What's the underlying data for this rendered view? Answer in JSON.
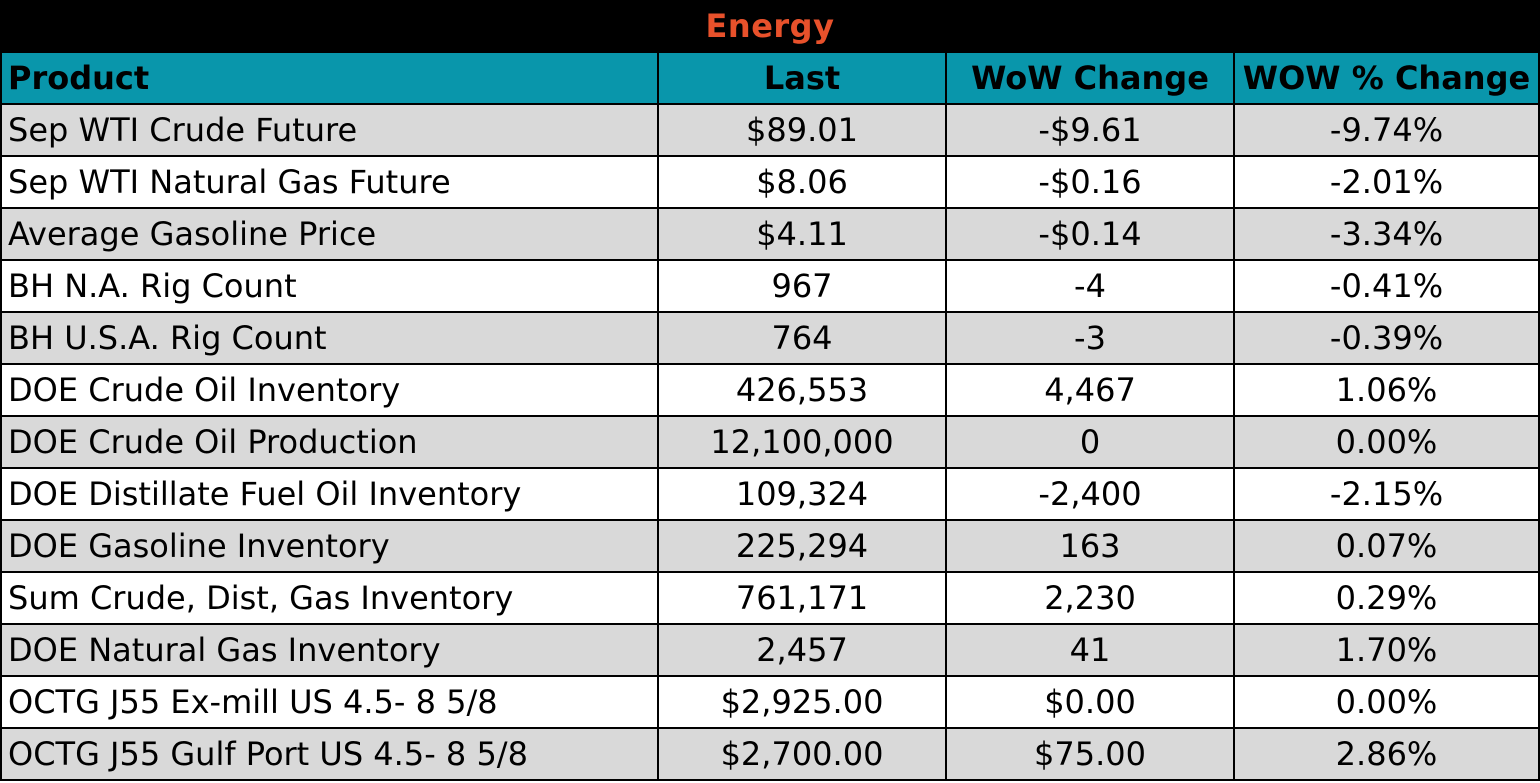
{
  "title": "Energy",
  "colors": {
    "title_bg": "#000000",
    "title_text": "#e8512b",
    "header_bg": "#0996ab",
    "shaded_row": "#d9d9d9",
    "plain_row": "#ffffff"
  },
  "columns": [
    "Product",
    "Last",
    "WoW Change",
    "WOW % Change"
  ],
  "rows": [
    {
      "product": "Sep WTI Crude Future",
      "last": "$89.01",
      "wow_change": "-$9.61",
      "wow_pct": "-9.74%"
    },
    {
      "product": "Sep WTI Natural Gas Future",
      "last": "$8.06",
      "wow_change": "-$0.16",
      "wow_pct": "-2.01%"
    },
    {
      "product": "Average Gasoline Price",
      "last": "$4.11",
      "wow_change": "-$0.14",
      "wow_pct": "-3.34%"
    },
    {
      "product": "BH N.A. Rig Count",
      "last": "967",
      "wow_change": "-4",
      "wow_pct": "-0.41%"
    },
    {
      "product": "BH U.S.A. Rig Count",
      "last": "764",
      "wow_change": "-3",
      "wow_pct": "-0.39%"
    },
    {
      "product": "DOE Crude Oil Inventory",
      "last": "426,553",
      "wow_change": "4,467",
      "wow_pct": "1.06%"
    },
    {
      "product": "DOE Crude Oil Production",
      "last": "12,100,000",
      "wow_change": "0",
      "wow_pct": "0.00%"
    },
    {
      "product": "DOE Distillate Fuel Oil Inventory",
      "last": "109,324",
      "wow_change": "-2,400",
      "wow_pct": "-2.15%"
    },
    {
      "product": "DOE Gasoline Inventory",
      "last": "225,294",
      "wow_change": "163",
      "wow_pct": "0.07%"
    },
    {
      "product": "Sum Crude, Dist, Gas Inventory",
      "last": "761,171",
      "wow_change": "2,230",
      "wow_pct": "0.29%"
    },
    {
      "product": "DOE Natural Gas Inventory",
      "last": "2,457",
      "wow_change": "41",
      "wow_pct": "1.70%"
    },
    {
      "product": "OCTG J55 Ex-mill US 4.5- 8 5/8",
      "last": "$2,925.00",
      "wow_change": "$0.00",
      "wow_pct": "0.00%"
    },
    {
      "product": "OCTG J55 Gulf Port US 4.5- 8 5/8",
      "last": "$2,700.00",
      "wow_change": "$75.00",
      "wow_pct": "2.86%"
    }
  ]
}
